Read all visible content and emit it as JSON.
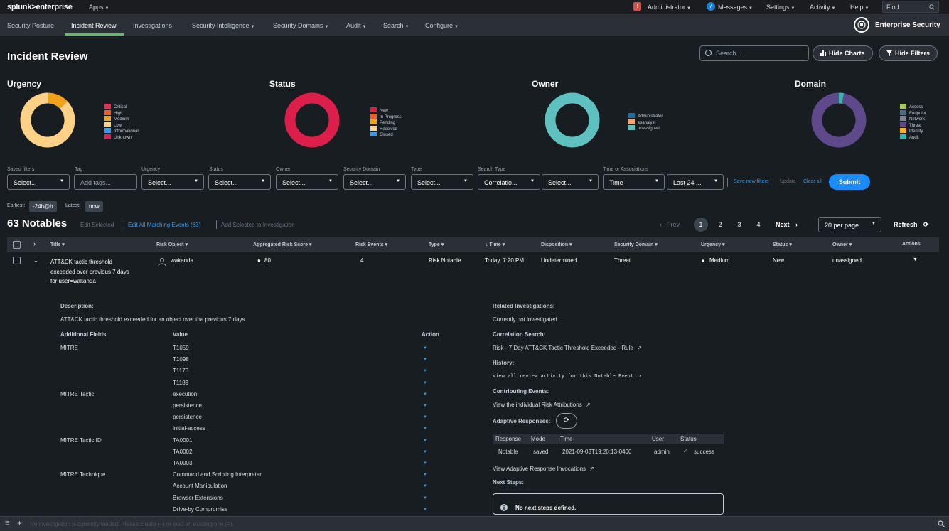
{
  "topbar": {
    "logo": "splunk>enterprise",
    "apps": "Apps",
    "alert_badge": "!",
    "administrator": "Administrator",
    "messages_count": "7",
    "messages": "Messages",
    "settings": "Settings",
    "activity": "Activity",
    "help": "Help",
    "find_placeholder": "Find"
  },
  "appbar": {
    "nav": [
      "Security Posture",
      "Incident Review",
      "Investigations",
      "Security Intelligence",
      "Security Domains",
      "Audit",
      "Search",
      "Configure"
    ],
    "active": "Incident Review",
    "product": "Enterprise Security"
  },
  "page": {
    "title": "Incident Review",
    "search_placeholder": "Search...",
    "hide_charts": "Hide Charts",
    "hide_filters": "Hide Filters"
  },
  "charts": [
    {
      "title": "Urgency",
      "legend": [
        {
          "label": "Critical",
          "color": "#e22f57"
        },
        {
          "label": "High",
          "color": "#ef5d27"
        },
        {
          "label": "Medium",
          "color": "#f0a21d"
        },
        {
          "label": "Low",
          "color": "#fdd186"
        },
        {
          "label": "Informational",
          "color": "#3a9ae7"
        },
        {
          "label": "Unknown",
          "color": "#dc1e5a"
        }
      ],
      "segments": [
        {
          "label": "Medium",
          "value": 13,
          "color": "#f0a21d"
        },
        {
          "label": "Low",
          "value": 87,
          "color": "#fdd186"
        }
      ]
    },
    {
      "title": "Status",
      "legend": [
        {
          "label": "New",
          "color": "#dc1e4a"
        },
        {
          "label": "In Progress",
          "color": "#ef5d27"
        },
        {
          "label": "Pending",
          "color": "#f0a21d"
        },
        {
          "label": "Resolved",
          "color": "#fdd186"
        },
        {
          "label": "Closed",
          "color": "#3a9ae7"
        }
      ],
      "segments": [
        {
          "label": "New",
          "value": 100,
          "color": "#dc1e4a"
        }
      ]
    },
    {
      "title": "Owner",
      "legend": [
        {
          "label": "Administrator",
          "color": "#1e6ea5"
        },
        {
          "label": "esanalyst",
          "color": "#f6a36c"
        },
        {
          "label": "unassigned",
          "color": "#5ec1c0"
        }
      ],
      "segments": [
        {
          "label": "unassigned",
          "value": 100,
          "color": "#5ec1c0"
        }
      ]
    },
    {
      "title": "Domain",
      "legend": [
        {
          "label": "Access",
          "color": "#a9c560"
        },
        {
          "label": "Endpoint",
          "color": "#4e6b82"
        },
        {
          "label": "Network",
          "color": "#7e8591"
        },
        {
          "label": "Threat",
          "color": "#5e4a8a"
        },
        {
          "label": "Identity",
          "color": "#f5b42a"
        },
        {
          "label": "Audit",
          "color": "#3ab5ad"
        }
      ],
      "segments": [
        {
          "label": "Audit",
          "value": 3,
          "color": "#3ab5ad"
        },
        {
          "label": "Threat",
          "value": 97,
          "color": "#5e4a8a"
        }
      ]
    }
  ],
  "filters": {
    "labels": [
      "Saved filters",
      "Tag",
      "Urgency",
      "Status",
      "Owner",
      "Security Domain",
      "Type",
      "Search Type",
      "Time or Associations"
    ],
    "saved_filters": "Select...",
    "tag_placeholder": "Add tags...",
    "urgency": "Select...",
    "status": "Select...",
    "owner": "Select...",
    "security_domain": "Select...",
    "type": "Select...",
    "search_type": "Correlatio...",
    "search_type_2": "Select...",
    "time": "Time",
    "time_range": "Last 24 ...",
    "save_new_filters": "Save new filters",
    "update": "Update",
    "clear_all": "Clear all",
    "submit": "Submit",
    "earliest_label": "Earliest:",
    "earliest_value": "-24h@h",
    "latest_label": "Latest:",
    "latest_value": "now"
  },
  "results": {
    "count_title": "63 Notables",
    "edit_selected": "Edit Selected",
    "edit_all": "Edit All Matching Events (63)",
    "add_selected": "Add Selected to Investigation",
    "prev": "Prev",
    "pages": [
      "1",
      "2",
      "3",
      "4"
    ],
    "next": "Next",
    "per_page": "20 per page",
    "refresh": "Refresh"
  },
  "table": {
    "columns": [
      "Title",
      "Risk Object",
      "Aggregated Risk Score",
      "Risk Events",
      "Type",
      "Time",
      "Disposition",
      "Security Domain",
      "Urgency",
      "Status",
      "Owner",
      "Actions"
    ],
    "row": {
      "title": [
        "ATT&CK tactic threshold",
        "exceeded over previous 7 days",
        "for user=wakanda"
      ],
      "risk_object": "wakanda",
      "risk_score": "80",
      "risk_events": "4",
      "type": "Risk Notable",
      "time": "Today, 7:20 PM",
      "disposition": "Undetermined",
      "security_domain": "Threat",
      "urgency": "Medium",
      "status": "New",
      "owner": "unassigned"
    }
  },
  "details": {
    "description_label": "Description:",
    "description": "ATT&CK tactic threshold exceeded for an object over the previous 7 days",
    "additional_fields": "Additional Fields",
    "value": "Value",
    "action": "Action",
    "fields": [
      {
        "name": "MITRE",
        "values": [
          "T1059",
          "T1098",
          "T1176",
          "T1189"
        ]
      },
      {
        "name": "MITRE Tactic",
        "values": [
          "execution",
          "persistence",
          "persistence",
          "initial-access"
        ]
      },
      {
        "name": "MITRE Tactic ID",
        "values": [
          "TA0001",
          "TA0002",
          "TA0003"
        ]
      },
      {
        "name": "MITRE Technique",
        "values": [
          "Command and Scripting Interpreter",
          "Account Manipulation",
          "Browser Extensions",
          "Drive-by Compromise"
        ]
      }
    ],
    "related_investigations_label": "Related Investigations:",
    "related_investigations": "Currently not investigated.",
    "correlation_search_label": "Correlation Search:",
    "correlation_search": "Risk - 7 Day ATT&CK Tactic Threshold Exceeded - Rule",
    "history_label": "History:",
    "history": "View all review activity for this Notable Event",
    "contributing_label": "Contributing Events:",
    "contributing": "View the individual Risk Attributions",
    "adaptive_label": "Adaptive Responses:",
    "ar_headers": [
      "Response",
      "Mode",
      "Time",
      "User",
      "Status"
    ],
    "ar_row": [
      "Notable",
      "saved",
      "2021-09-03T19:20:13-0400",
      "admin",
      "success"
    ],
    "view_ar": "View Adaptive Response Invocations",
    "next_steps_label": "Next Steps:",
    "next_steps": "No next steps defined."
  },
  "bottombar": {
    "message": "No investigation is currently loaded. Please create (+) or load an existing one (≡)."
  }
}
